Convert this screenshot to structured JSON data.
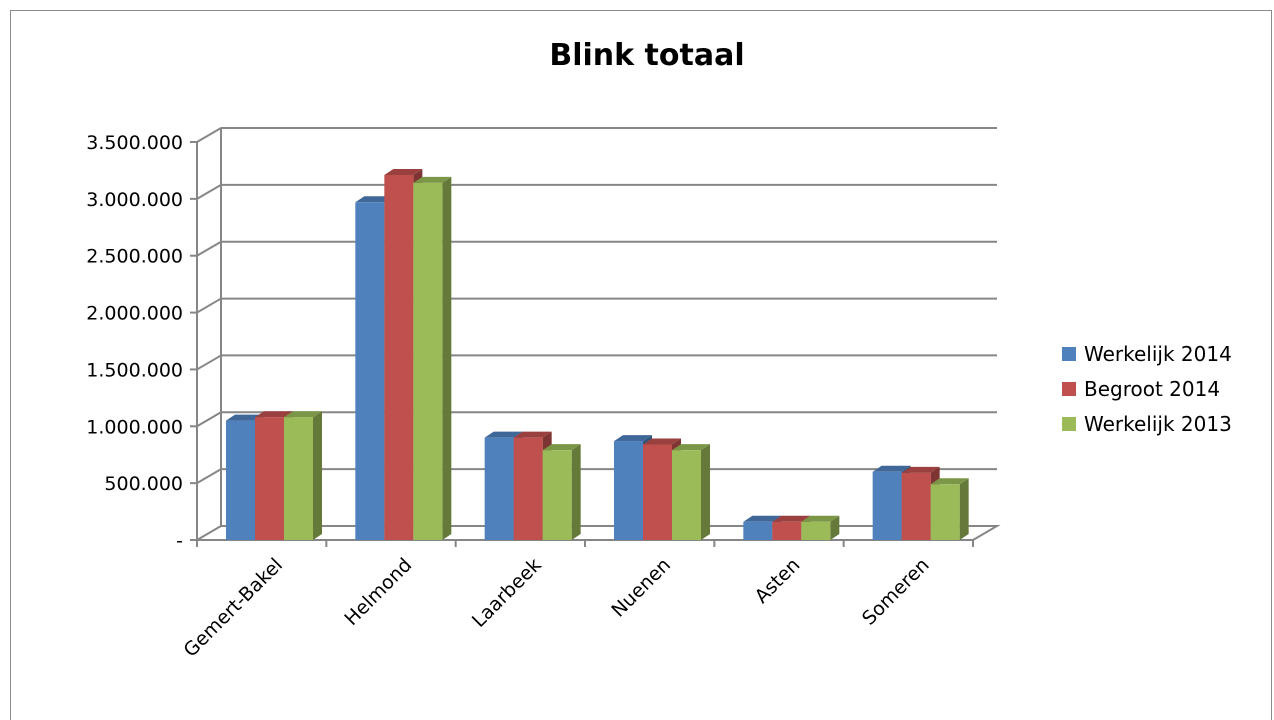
{
  "chart_data": {
    "type": "bar",
    "title": "Blink totaal",
    "categories": [
      "Gemert-Bakel",
      "Helmond",
      "Laarbeek",
      "Nuenen",
      "Asten",
      "Someren"
    ],
    "series": [
      {
        "name": "Werkelijk 2014",
        "color": "#4f81bd",
        "values": [
          1050000,
          2970000,
          900000,
          870000,
          160000,
          600000
        ]
      },
      {
        "name": "Begroot 2014",
        "color": "#c0504d",
        "values": [
          1080000,
          3210000,
          900000,
          840000,
          160000,
          590000
        ]
      },
      {
        "name": "Werkelijk 2013",
        "color": "#9bbb59",
        "values": [
          1080000,
          3140000,
          790000,
          790000,
          160000,
          490000
        ]
      }
    ],
    "yticks": [
      "-",
      "500.000",
      "1.000.000",
      "1.500.000",
      "2.000.000",
      "2.500.000",
      "3.000.000",
      "3.500.000"
    ],
    "ylim": [
      0,
      3500000
    ],
    "grid": true,
    "legend_position": "right"
  }
}
